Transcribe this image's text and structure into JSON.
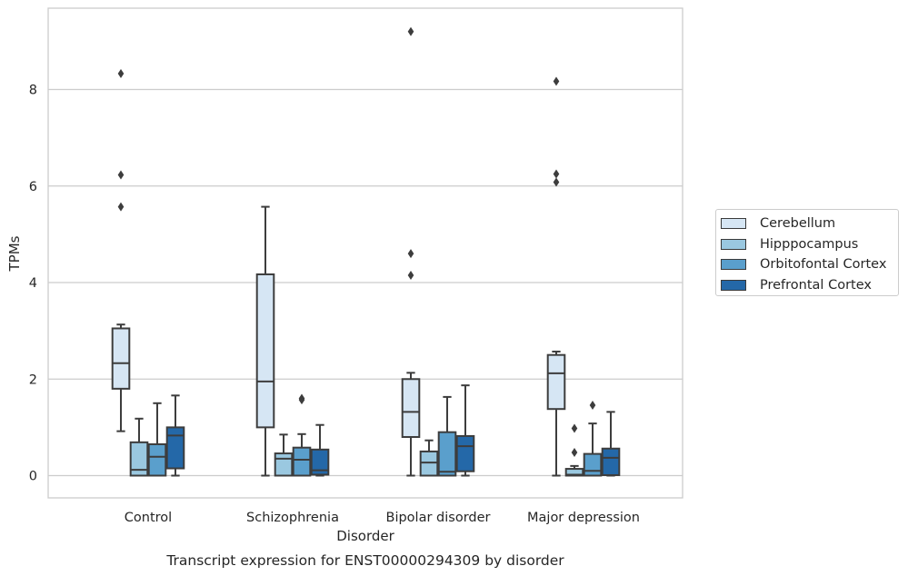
{
  "chart_data": {
    "type": "box",
    "title": "Transcript expression for ENST00000294309 by disorder",
    "xlabel": "Disorder",
    "ylabel": "TPMs",
    "ylim": [
      -0.45,
      9.7
    ],
    "yticks": [
      0,
      2,
      4,
      6,
      8
    ],
    "ytick_labels": [
      "0",
      "2",
      "4",
      "6",
      "8"
    ],
    "grid": "horizontal",
    "legend_position": "right",
    "categories": [
      "Control",
      "Schizophrenia",
      "Bipolar disorder",
      "Major depression"
    ],
    "series": [
      {
        "name": "Cerebellum",
        "color": "#d6e6f4",
        "boxes": [
          {
            "q1": 1.8,
            "median": 2.33,
            "q3": 3.05,
            "whisker_low": 0.92,
            "whisker_high": 3.13,
            "outliers": [
              5.57,
              6.23,
              8.33
            ]
          },
          {
            "q1": 1.0,
            "median": 1.95,
            "q3": 4.17,
            "whisker_low": 0.0,
            "whisker_high": 5.57,
            "outliers": []
          },
          {
            "q1": 0.8,
            "median": 1.32,
            "q3": 2.0,
            "whisker_low": 0.0,
            "whisker_high": 2.13,
            "outliers": [
              4.15,
              4.6,
              9.2
            ]
          },
          {
            "q1": 1.38,
            "median": 2.12,
            "q3": 2.5,
            "whisker_low": 0.0,
            "whisker_high": 2.57,
            "outliers": [
              6.08,
              6.25,
              8.17
            ]
          }
        ]
      },
      {
        "name": "Hipppocampus",
        "color": "#9ac8e0",
        "boxes": [
          {
            "q1": 0.0,
            "median": 0.12,
            "q3": 0.69,
            "whisker_low": 0.0,
            "whisker_high": 1.18,
            "outliers": []
          },
          {
            "q1": 0.0,
            "median": 0.35,
            "q3": 0.46,
            "whisker_low": 0.0,
            "whisker_high": 0.85,
            "outliers": []
          },
          {
            "q1": 0.0,
            "median": 0.27,
            "q3": 0.5,
            "whisker_low": 0.0,
            "whisker_high": 0.73,
            "outliers": []
          },
          {
            "q1": 0.0,
            "median": 0.02,
            "q3": 0.14,
            "whisker_low": 0.0,
            "whisker_high": 0.2,
            "outliers": [
              0.48,
              0.98
            ]
          }
        ]
      },
      {
        "name": "Orbitofontal Cortex",
        "color": "#5a9fcc",
        "boxes": [
          {
            "q1": 0.0,
            "median": 0.39,
            "q3": 0.65,
            "whisker_low": 0.0,
            "whisker_high": 1.5,
            "outliers": []
          },
          {
            "q1": 0.0,
            "median": 0.33,
            "q3": 0.58,
            "whisker_low": 0.0,
            "whisker_high": 0.86,
            "outliers": [
              1.57,
              1.6
            ]
          },
          {
            "q1": 0.0,
            "median": 0.08,
            "q3": 0.9,
            "whisker_low": 0.0,
            "whisker_high": 1.63,
            "outliers": []
          },
          {
            "q1": 0.0,
            "median": 0.1,
            "q3": 0.45,
            "whisker_low": 0.0,
            "whisker_high": 1.08,
            "outliers": [
              1.46
            ]
          }
        ]
      },
      {
        "name": "Prefrontal Cortex",
        "color": "#2468a8",
        "boxes": [
          {
            "q1": 0.15,
            "median": 0.83,
            "q3": 1.0,
            "whisker_low": 0.0,
            "whisker_high": 1.66,
            "outliers": []
          },
          {
            "q1": 0.02,
            "median": 0.11,
            "q3": 0.54,
            "whisker_low": 0.0,
            "whisker_high": 1.05,
            "outliers": []
          },
          {
            "q1": 0.09,
            "median": 0.61,
            "q3": 0.82,
            "whisker_low": 0.0,
            "whisker_high": 1.87,
            "outliers": []
          },
          {
            "q1": 0.01,
            "median": 0.37,
            "q3": 0.56,
            "whisker_low": 0.0,
            "whisker_high": 1.32,
            "outliers": []
          }
        ]
      }
    ]
  }
}
